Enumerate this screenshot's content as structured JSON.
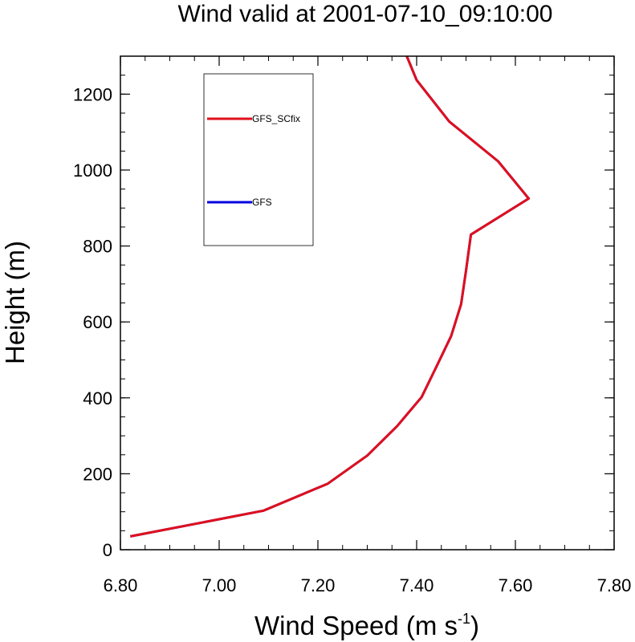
{
  "chart_data": {
    "type": "line",
    "title": "Wind valid at 2001-07-10_09:10:00",
    "xlabel": "Wind Speed (m s",
    "xlabel_sup": "-1",
    "xlabel_end": ")",
    "ylabel": "Height (m)",
    "xlim": [
      6.8,
      7.8
    ],
    "ylim": [
      0,
      1300
    ],
    "xticks": [
      6.8,
      7.0,
      7.2,
      7.4,
      7.6,
      7.8
    ],
    "xtick_labels": [
      "6.80",
      "7.00",
      "7.20",
      "7.40",
      "7.60",
      "7.80"
    ],
    "yticks": [
      0,
      200,
      400,
      600,
      800,
      1000,
      1200
    ],
    "ytick_labels": [
      "0",
      "200",
      "400",
      "600",
      "800",
      "1000",
      "1200"
    ],
    "grid": false,
    "legend_placement": "top-left",
    "series": [
      {
        "name": "GFS_SCfix",
        "color": "#e0101c",
        "x": [
          6.82,
          7.09,
          7.22,
          7.3,
          7.36,
          7.41,
          7.44,
          7.47,
          7.49,
          7.5,
          7.51,
          7.627,
          7.565,
          7.466,
          7.4,
          7.38
        ],
        "y": [
          35,
          103,
          174,
          248,
          325,
          402,
          482,
          563,
          647,
          735,
          830,
          925,
          1023,
          1128,
          1237,
          1300
        ]
      },
      {
        "name": "GFS",
        "color": "#0000e0",
        "x": [
          6.82,
          7.09,
          7.22,
          7.3,
          7.36,
          7.41,
          7.44,
          7.47,
          7.49,
          7.5,
          7.51,
          7.627,
          7.565,
          7.466,
          7.4,
          7.38
        ],
        "y": [
          35,
          103,
          174,
          248,
          325,
          402,
          482,
          563,
          647,
          735,
          830,
          925,
          1023,
          1128,
          1237,
          1300
        ]
      }
    ]
  }
}
